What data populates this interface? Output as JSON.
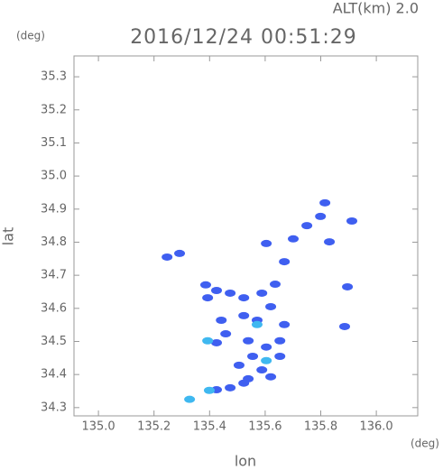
{
  "chart_data": {
    "type": "scatter",
    "title": "2016/12/24 00:51:29",
    "subtitle": "ALT(km) 2.0",
    "y_unit": "(deg)",
    "x_unit": "(deg)",
    "xlabel": "lon",
    "ylabel": "lat",
    "xlim": [
      134.912,
      136.149
    ],
    "ylim": [
      34.275,
      35.363
    ],
    "xticks": [
      {
        "value": 135.0,
        "label": "135.0"
      },
      135.2,
      135.4,
      135.6,
      135.8,
      {
        "value": 136.0,
        "label": "136.0"
      }
    ],
    "yticks": [
      34.3,
      34.4,
      34.5,
      34.6,
      34.7,
      34.8,
      34.9,
      {
        "value": 35.0,
        "label": "35.0"
      },
      35.1,
      35.2,
      35.3
    ],
    "series": [
      {
        "color": "#3f5ff0",
        "x": [
          135.247,
          135.292,
          135.386,
          135.393,
          135.425,
          135.474,
          135.523,
          135.588,
          135.636,
          135.62,
          135.523,
          135.571,
          135.442,
          135.425,
          135.539,
          135.604,
          135.653,
          135.555,
          135.653,
          135.506,
          135.588,
          135.539,
          135.62,
          135.425,
          135.474,
          135.523,
          135.669,
          135.669,
          135.701,
          135.75,
          135.799,
          135.815,
          135.831,
          135.912,
          135.896,
          135.886,
          135.604,
          135.458
        ],
        "y": [
          34.755,
          34.766,
          34.671,
          34.632,
          34.654,
          34.646,
          34.632,
          34.646,
          34.673,
          34.605,
          34.578,
          34.564,
          34.564,
          34.496,
          34.502,
          34.483,
          34.502,
          34.455,
          34.455,
          34.428,
          34.414,
          34.387,
          34.393,
          34.354,
          34.36,
          34.374,
          34.551,
          34.741,
          34.81,
          34.85,
          34.878,
          34.919,
          34.801,
          34.864,
          34.665,
          34.545,
          34.796,
          34.523
        ]
      },
      {
        "color": "#3fb8f0",
        "x": [
          135.328,
          135.399,
          135.571,
          135.604,
          135.393
        ],
        "y": [
          34.325,
          34.352,
          34.551,
          34.442,
          34.502
        ]
      }
    ]
  }
}
